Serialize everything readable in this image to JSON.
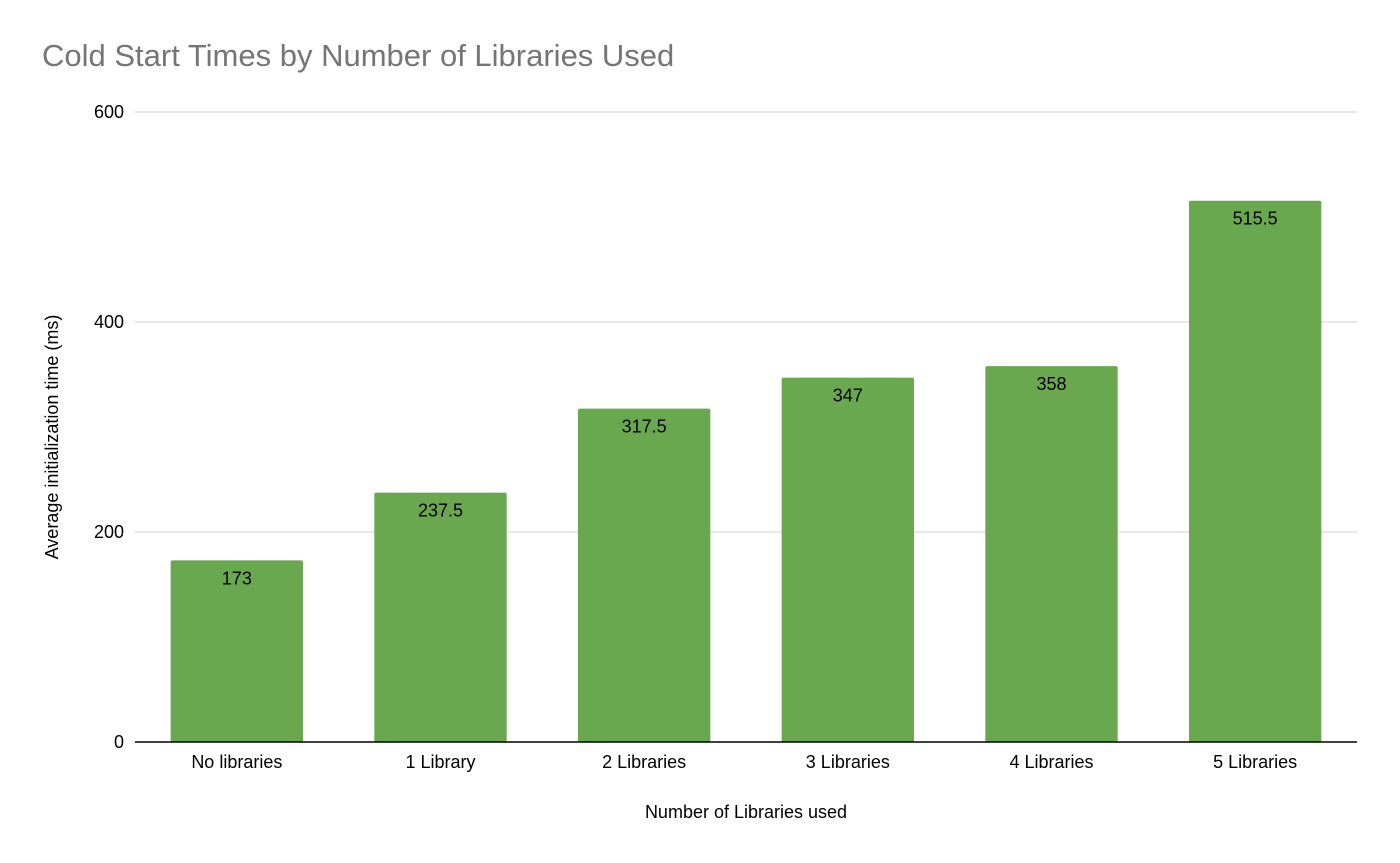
{
  "chart_data": {
    "type": "bar",
    "title": "Cold Start Times by Number of Libraries Used",
    "xlabel": "Number of Libraries used",
    "ylabel": "Average initialization time (ms)",
    "categories": [
      "No libraries",
      "1 Library",
      "2 Libraries",
      "3 Libraries",
      "4 Libraries",
      "5 Libraries"
    ],
    "values": [
      173,
      237.5,
      317.5,
      347,
      358,
      515.5
    ],
    "data_labels": [
      "173",
      "237.5",
      "317.5",
      "347",
      "358",
      "515.5"
    ],
    "ylim": [
      0,
      600
    ],
    "yticks": [
      0,
      200,
      400,
      600
    ],
    "ytick_labels": [
      "0",
      "200",
      "400",
      "600"
    ],
    "grid": true,
    "legend": "none",
    "colors": {
      "bar": "#6aa84f",
      "title": "#757575",
      "grid": "#d0d0d0",
      "axis": "#000000"
    }
  }
}
